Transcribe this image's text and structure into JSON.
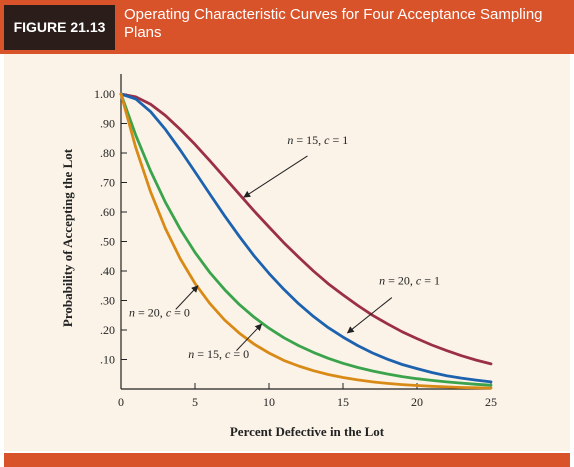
{
  "figure": {
    "label": "FIGURE 21.13",
    "title": "Operating Characteristic Curves for Four Acceptance Sampling Plans"
  },
  "colors": {
    "banner": "#d9532a",
    "badge": "#2b1e1a",
    "panel": "#fbf3e8"
  },
  "chart_data": {
    "type": "line",
    "title": "",
    "xlabel": "Percent Defective in the Lot",
    "ylabel": "Probability of Accepting the Lot",
    "xlim": [
      0,
      25
    ],
    "ylim": [
      0,
      1
    ],
    "xticks": [
      0,
      5,
      10,
      15,
      20,
      25
    ],
    "yticks": [
      0.1,
      0.2,
      0.3,
      0.4,
      0.5,
      0.6,
      0.7,
      0.8,
      0.9,
      1.0
    ],
    "xtick_labels": [
      "0",
      "5",
      "10",
      "15",
      "20",
      "25"
    ],
    "ytick_labels": [
      ".10",
      ".20",
      ".30",
      ".40",
      ".50",
      ".60",
      ".70",
      ".80",
      ".90",
      "1.00"
    ],
    "grid": false,
    "series": [
      {
        "name": "n = 15, c = 1",
        "color": "#9b2f45",
        "x": [
          0,
          1,
          2,
          3,
          4,
          5,
          6,
          7,
          8,
          9,
          10,
          11,
          12,
          13,
          14,
          15,
          16,
          17,
          18,
          19,
          20,
          21,
          22,
          23,
          24,
          25
        ],
        "y": [
          1.0,
          0.99,
          0.965,
          0.927,
          0.88,
          0.829,
          0.774,
          0.717,
          0.66,
          0.603,
          0.549,
          0.496,
          0.447,
          0.4,
          0.357,
          0.319,
          0.283,
          0.25,
          0.221,
          0.194,
          0.171,
          0.149,
          0.13,
          0.113,
          0.098,
          0.085
        ]
      },
      {
        "name": "n = 20, c = 1",
        "color": "#1c62ae",
        "x": [
          0,
          1,
          2,
          3,
          4,
          5,
          6,
          7,
          8,
          9,
          10,
          11,
          12,
          13,
          14,
          15,
          16,
          17,
          18,
          19,
          20,
          21,
          22,
          23,
          24,
          25
        ],
        "y": [
          1.0,
          0.983,
          0.94,
          0.88,
          0.81,
          0.736,
          0.661,
          0.587,
          0.517,
          0.451,
          0.392,
          0.338,
          0.289,
          0.246,
          0.208,
          0.176,
          0.147,
          0.122,
          0.101,
          0.083,
          0.069,
          0.056,
          0.045,
          0.037,
          0.03,
          0.024
        ]
      },
      {
        "name": "n = 15, c = 0",
        "color": "#3aa34b",
        "x": [
          0,
          1,
          2,
          3,
          4,
          5,
          6,
          7,
          8,
          9,
          10,
          11,
          12,
          13,
          14,
          15,
          16,
          17,
          18,
          19,
          20,
          21,
          22,
          23,
          24,
          25
        ],
        "y": [
          1.0,
          0.86,
          0.739,
          0.633,
          0.542,
          0.463,
          0.395,
          0.337,
          0.286,
          0.243,
          0.206,
          0.174,
          0.147,
          0.124,
          0.104,
          0.087,
          0.073,
          0.061,
          0.051,
          0.042,
          0.035,
          0.029,
          0.024,
          0.02,
          0.016,
          0.013
        ]
      },
      {
        "name": "n = 20, c = 0",
        "color": "#d98a16",
        "x": [
          0,
          1,
          2,
          3,
          4,
          5,
          6,
          7,
          8,
          9,
          10,
          11,
          12,
          13,
          14,
          15,
          16,
          17,
          18,
          19,
          20,
          21,
          22,
          23,
          24,
          25
        ],
        "y": [
          1.0,
          0.818,
          0.668,
          0.544,
          0.442,
          0.358,
          0.29,
          0.234,
          0.189,
          0.152,
          0.122,
          0.097,
          0.078,
          0.062,
          0.049,
          0.039,
          0.031,
          0.024,
          0.019,
          0.015,
          0.012,
          0.009,
          0.007,
          0.005,
          0.004,
          0.003
        ]
      }
    ],
    "annotations": [
      {
        "text": "n = 15, c = 1",
        "series": "n = 15, c = 1",
        "label_x": 13.3,
        "label_y": 0.83,
        "arrow_from": [
          12.6,
          0.79
        ],
        "arrow_to": [
          8.3,
          0.65
        ]
      },
      {
        "text": "n = 20, c = 1",
        "series": "n = 20, c = 1",
        "label_x": 19.5,
        "label_y": 0.355,
        "arrow_from": [
          18.3,
          0.31
        ],
        "arrow_to": [
          15.3,
          0.19
        ]
      },
      {
        "text": "n = 20, c = 0",
        "series": "n = 20, c = 0",
        "label_x": 2.6,
        "label_y": 0.245,
        "arrow_from": [
          3.7,
          0.27
        ],
        "arrow_to": [
          5.2,
          0.35
        ]
      },
      {
        "text": "n = 15, c = 0",
        "series": "n = 15, c = 0",
        "label_x": 6.6,
        "label_y": 0.105,
        "arrow_from": [
          7.8,
          0.13
        ],
        "arrow_to": [
          9.5,
          0.22
        ]
      }
    ]
  }
}
